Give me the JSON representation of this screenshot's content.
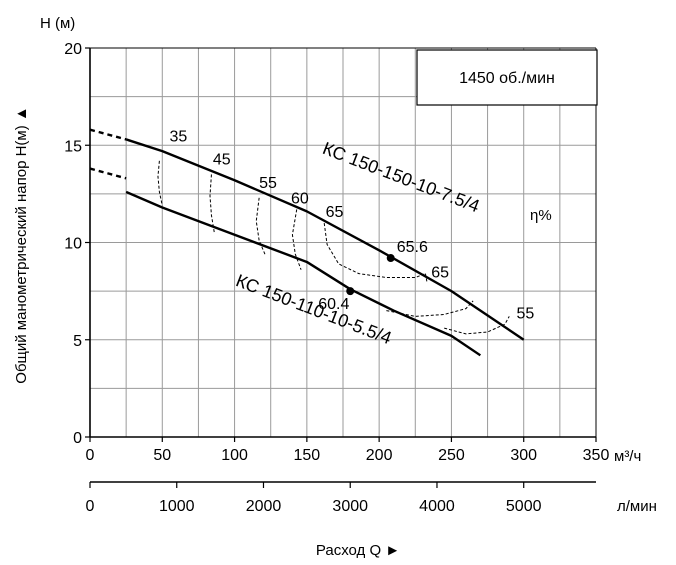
{
  "chart_data": {
    "type": "line",
    "y_axis": {
      "label": "Общий манометрический напор H(м) ▲",
      "unit_label": "H (м)",
      "ylim": [
        0,
        20
      ],
      "ticks": [
        0,
        5,
        10,
        15,
        20
      ],
      "grid_step": 2.5
    },
    "x_axis_primary": {
      "unit_label": "м³/ч",
      "xlim": [
        0,
        350
      ],
      "ticks": [
        0,
        50,
        100,
        150,
        200,
        250,
        300,
        350
      ],
      "grid_step": 25
    },
    "x_axis_secondary": {
      "unit_label": "л/мин",
      "ticks": [
        0,
        1000,
        2000,
        3000,
        4000,
        5000
      ],
      "m3h_per_lmin": 0.06
    },
    "x_label": "Расход Q ►",
    "speed_box": "1450 об./мин",
    "efficiency_label": "η%",
    "grid": true,
    "series": [
      {
        "name": "КС 150-150-10-7.5/4",
        "dashed_points": [
          [
            0,
            15.8
          ],
          [
            25,
            15.3
          ]
        ],
        "points": [
          [
            25,
            15.3
          ],
          [
            50,
            14.7
          ],
          [
            100,
            13.2
          ],
          [
            150,
            11.6
          ],
          [
            200,
            9.6
          ],
          [
            250,
            7.5
          ],
          [
            300,
            5.0
          ]
        ],
        "bep": {
          "x": 208,
          "y": 9.2,
          "label": "65.6"
        }
      },
      {
        "name": "КС 150-110-10-5.5/4",
        "dashed_points": [
          [
            0,
            13.8
          ],
          [
            25,
            13.3
          ]
        ],
        "points": [
          [
            25,
            12.6
          ],
          [
            50,
            11.8
          ],
          [
            100,
            10.4
          ],
          [
            150,
            9.0
          ],
          [
            180,
            7.6
          ],
          [
            210,
            6.5
          ],
          [
            250,
            5.2
          ],
          [
            270,
            4.2
          ]
        ],
        "bep": {
          "x": 180,
          "y": 7.5,
          "label": "60.4"
        }
      }
    ],
    "efficiency_lines": [
      {
        "label": "35",
        "x": 50
      },
      {
        "label": "45",
        "x": 85
      },
      {
        "label": "55",
        "x": 117
      },
      {
        "label": "60",
        "x": 143
      },
      {
        "label": "65",
        "x": 162
      },
      {
        "label": "65",
        "x": 237
      },
      {
        "label": "55",
        "x": 295
      }
    ]
  }
}
